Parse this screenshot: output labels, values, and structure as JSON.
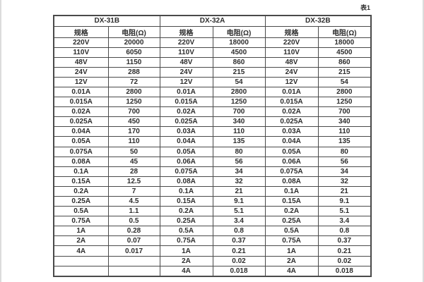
{
  "page": {
    "caption": "表1",
    "background": "#ffffff",
    "border_color": "#4a4a4a",
    "text_color": "#2d2d2d"
  },
  "table": {
    "groups": [
      {
        "name": "DX-31B",
        "col_headers": [
          "规格",
          "电阻(Ω)"
        ]
      },
      {
        "name": "DX-32A",
        "col_headers": [
          "规格",
          "电阻(Ω)"
        ]
      },
      {
        "name": "DX-32B",
        "col_headers": [
          "规格",
          "电阻(Ω)"
        ]
      }
    ],
    "rows": [
      [
        "220V",
        "20000",
        "220V",
        "18000",
        "220V",
        "18000"
      ],
      [
        "110V",
        "6050",
        "110V",
        "4500",
        "110V",
        "4500"
      ],
      [
        "48V",
        "1150",
        "48V",
        "860",
        "48V",
        "860"
      ],
      [
        "24V",
        "288",
        "24V",
        "215",
        "24V",
        "215"
      ],
      [
        "12V",
        "72",
        "12V",
        "54",
        "12V",
        "54"
      ],
      [
        "0.01A",
        "2800",
        "0.01A",
        "2800",
        "0.01A",
        "2800"
      ],
      [
        "0.015A",
        "1250",
        "0.015A",
        "1250",
        "0.015A",
        "1250"
      ],
      [
        "0.02A",
        "700",
        "0.02A",
        "700",
        "0.02A",
        "700"
      ],
      [
        "0.025A",
        "450",
        "0.025A",
        "340",
        "0.025A",
        "340"
      ],
      [
        "0.04A",
        "170",
        "0.03A",
        "110",
        "0.03A",
        "110"
      ],
      [
        "0.05A",
        "110",
        "0.04A",
        "135",
        "0.04A",
        "135"
      ],
      [
        "0.075A",
        "50",
        "0.05A",
        "80",
        "0.05A",
        "80"
      ],
      [
        "0.08A",
        "45",
        "0.06A",
        "56",
        "0.06A",
        "56"
      ],
      [
        "0.1A",
        "28",
        "0.075A",
        "34",
        "0.075A",
        "34"
      ],
      [
        "0.15A",
        "12.5",
        "0.08A",
        "32",
        "0.08A",
        "32"
      ],
      [
        "0.2A",
        "7",
        "0.1A",
        "21",
        "0.1A",
        "21"
      ],
      [
        "0.25A",
        "4.5",
        "0.15A",
        "9.1",
        "0.15A",
        "9.1"
      ],
      [
        "0.5A",
        "1.1",
        "0.2A",
        "5.1",
        "0.2A",
        "5.1"
      ],
      [
        "0.75A",
        "0.5",
        "0.25A",
        "3.4",
        "0.25A",
        "3.4"
      ],
      [
        "1A",
        "0.28",
        "0.5A",
        "0.8",
        "0.5A",
        "0.8"
      ],
      [
        "2A",
        "0.07",
        "0.75A",
        "0.37",
        "0.75A",
        "0.37"
      ],
      [
        "4A",
        "0.017",
        "1A",
        "0.21",
        "1A",
        "0.21"
      ],
      [
        "",
        "",
        "2A",
        "0.02",
        "2A",
        "0.02"
      ],
      [
        "",
        "",
        "4A",
        "0.018",
        "4A",
        "0.018"
      ]
    ]
  }
}
